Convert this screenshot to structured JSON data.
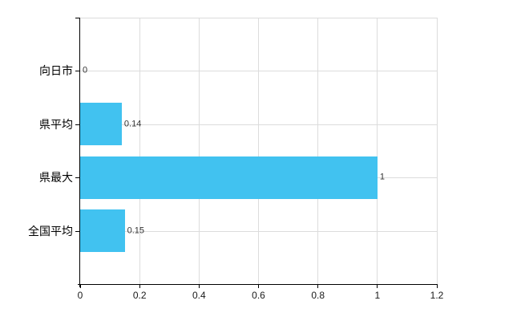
{
  "chart_data": {
    "type": "bar",
    "orientation": "horizontal",
    "title": "",
    "xlabel": "",
    "ylabel": "",
    "categories": [
      "向日市",
      "県平均",
      "県最大",
      "全国平均"
    ],
    "values": [
      0,
      0.14,
      1,
      0.15
    ],
    "value_labels": [
      "0",
      "0.14",
      "1",
      "0.15"
    ],
    "xlim": [
      0,
      1.2
    ],
    "x_ticks": [
      0,
      0.2,
      0.4,
      0.6,
      0.8,
      1,
      1.2
    ],
    "x_tick_labels": [
      "0",
      "0.2",
      "0.4",
      "0.6",
      "0.8",
      "1",
      "1.2"
    ],
    "grid": true,
    "legend": false,
    "colors": {
      "bar": "#41c2f0",
      "grid": "#dcdcdc",
      "axis": "#000000",
      "category_text": "#000000",
      "tick_text": "#1a1a1a",
      "value_text": "#333333",
      "background": "#ffffff"
    }
  }
}
